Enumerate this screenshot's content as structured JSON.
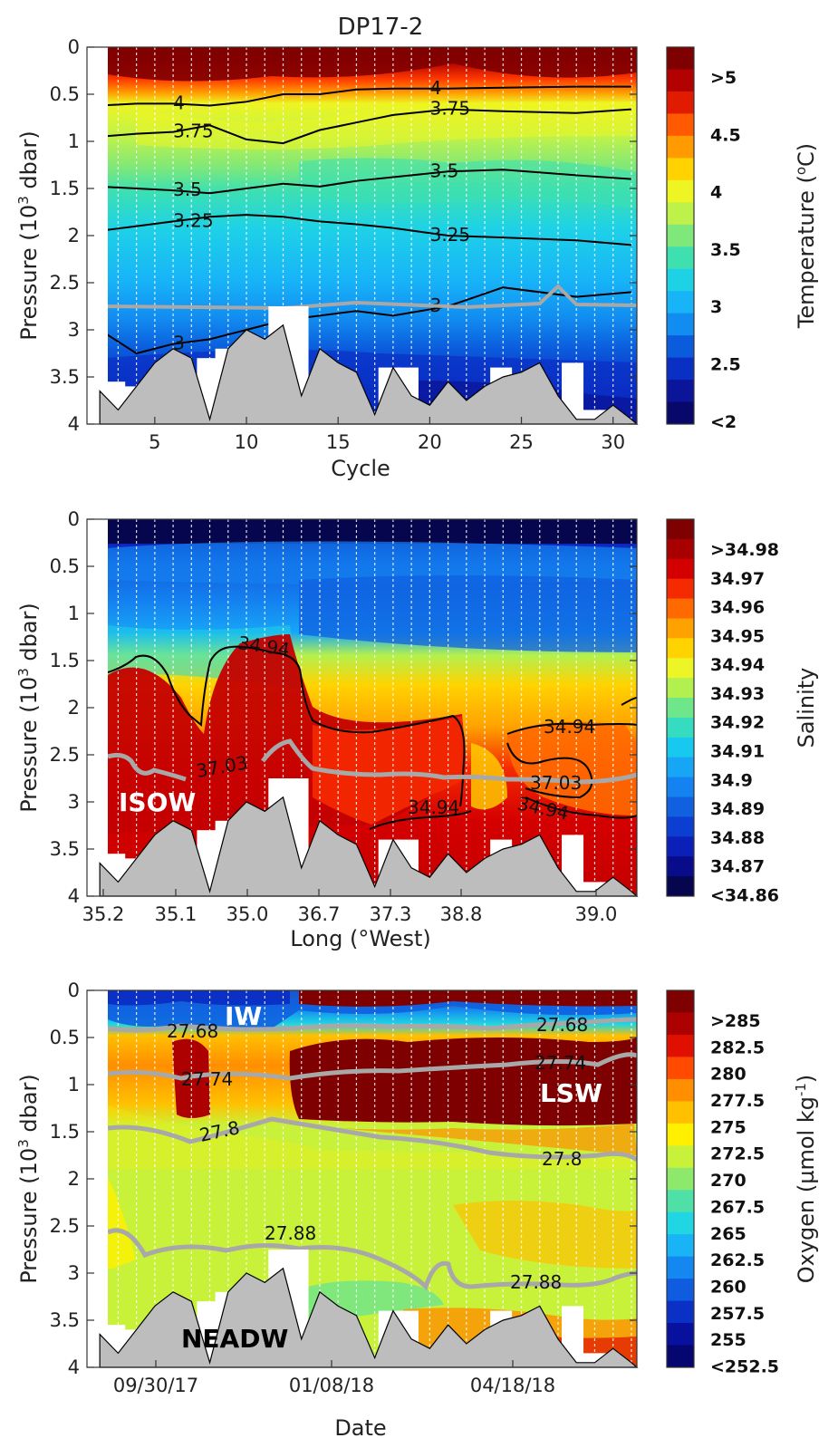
{
  "figure_title": "DP17-2",
  "chart_data": [
    {
      "type": "heatmap",
      "panel": "temperature",
      "xlabel": "Cycle",
      "ylabel": "Pressure (10^3 dbar)",
      "xlim": [
        1.3,
        31.3
      ],
      "ylim": [
        4,
        0
      ],
      "x_ticks": [
        "5",
        "10",
        "15",
        "20",
        "25",
        "30"
      ],
      "x_tick_values": [
        5,
        10,
        15,
        20,
        25,
        30
      ],
      "y_ticks": [
        "0",
        "0.5",
        "1",
        "1.5",
        "2",
        "2.5",
        "3",
        "3.5",
        "4"
      ],
      "y_tick_values": [
        0,
        0.5,
        1,
        1.5,
        2,
        2.5,
        3,
        3.5,
        4
      ],
      "colorbar_label": "Temperature (°C)",
      "colorbar_ticks": [
        ">5",
        "4.5",
        "4",
        "3.5",
        "3",
        "2.5",
        "<2"
      ],
      "colorbar_colors": [
        "#7f0000",
        "#b30000",
        "#e11b00",
        "#ff5a00",
        "#ff9a00",
        "#ffd200",
        "#eef522",
        "#bef24a",
        "#7ee87a",
        "#3ee0b0",
        "#1ed2e6",
        "#17b4f8",
        "#118cf0",
        "#0b5cdd",
        "#0a2fc4",
        "#0a159a",
        "#08086b"
      ],
      "contours": [
        {
          "label": "4",
          "y": [
            0.62,
            0.6,
            0.6,
            0.62,
            0.58,
            0.5,
            0.5,
            0.45,
            0.44,
            0.44,
            0.43,
            0.42,
            0.42
          ],
          "x": [
            2,
            4,
            6,
            8,
            10,
            12,
            14,
            16,
            18,
            21,
            24,
            28,
            31
          ]
        },
        {
          "label": "3.75",
          "y": [
            0.95,
            0.92,
            0.9,
            0.83,
            0.98,
            1.02,
            0.88,
            0.8,
            0.72,
            0.66,
            0.68,
            0.7,
            0.66
          ],
          "x": [
            2,
            4,
            6,
            8,
            10,
            12,
            14,
            16,
            18,
            21,
            24,
            28,
            31
          ]
        },
        {
          "label": "3.5",
          "y": [
            1.48,
            1.5,
            1.52,
            1.55,
            1.5,
            1.45,
            1.48,
            1.42,
            1.38,
            1.32,
            1.3,
            1.36,
            1.4
          ],
          "x": [
            2,
            4,
            6,
            8,
            10,
            12,
            14,
            16,
            18,
            21,
            24,
            28,
            31
          ]
        },
        {
          "label": "3.25",
          "y": [
            1.95,
            1.9,
            1.85,
            1.8,
            1.78,
            1.8,
            1.85,
            1.88,
            1.92,
            2.0,
            2.02,
            2.05,
            2.1
          ],
          "x": [
            2,
            4,
            6,
            8,
            10,
            12,
            14,
            16,
            18,
            21,
            24,
            28,
            31
          ]
        },
        {
          "label": "3",
          "y": [
            3.0,
            3.25,
            3.15,
            3.1,
            3.0,
            2.9,
            2.85,
            2.8,
            2.85,
            2.75,
            2.55,
            2.65,
            2.6
          ],
          "x": [
            2,
            4,
            6,
            8,
            10,
            12,
            14,
            16,
            18,
            21,
            24,
            28,
            31
          ]
        }
      ],
      "mixed_layer_line_y": 2.75,
      "bottom_depth": {
        "x": [
          2,
          3,
          5,
          6,
          7,
          8,
          9,
          10,
          11,
          12,
          13,
          14,
          15,
          16,
          17,
          18,
          19,
          20,
          21,
          22,
          23,
          24,
          25,
          26,
          27,
          28,
          29,
          30,
          31
        ],
        "y": [
          3.65,
          3.85,
          3.35,
          3.2,
          3.3,
          3.95,
          3.2,
          3.0,
          3.1,
          2.95,
          3.7,
          3.2,
          3.35,
          3.45,
          3.9,
          3.4,
          3.7,
          3.8,
          3.55,
          3.75,
          3.6,
          3.5,
          3.45,
          3.35,
          3.7,
          3.95,
          3.95,
          3.8,
          3.95
        ]
      }
    },
    {
      "type": "heatmap",
      "panel": "salinity",
      "xlabel": "Long (°West)",
      "ylabel": "Pressure (10^3 dbar)",
      "ylim": [
        4,
        0
      ],
      "x_ticks": [
        "35.2",
        "35.1",
        "35.0",
        "36.7",
        "37.3",
        "38.8",
        "39.0"
      ],
      "y_ticks": [
        "0",
        "0.5",
        "1",
        "1.5",
        "2",
        "2.5",
        "3",
        "3.5",
        "4"
      ],
      "y_tick_values": [
        0,
        0.5,
        1,
        1.5,
        2,
        2.5,
        3,
        3.5,
        4
      ],
      "colorbar_label": "Salinity",
      "colorbar_ticks": [
        ">34.98",
        "34.97",
        "34.96",
        "34.95",
        "34.94",
        "34.93",
        "34.92",
        "34.91",
        "34.9",
        "34.89",
        "34.88",
        "34.87",
        "<34.86"
      ],
      "colorbar_colors": [
        "#7f0000",
        "#a80000",
        "#d40000",
        "#f52a00",
        "#ff6a00",
        "#ffa200",
        "#ffd300",
        "#eef526",
        "#b2f050",
        "#6ee68a",
        "#36dcc0",
        "#17c8ef",
        "#17a6f6",
        "#1482f0",
        "#1060e0",
        "#0c3ed2",
        "#0a20b8",
        "#080c8a",
        "#06064e"
      ],
      "contours": [
        {
          "label": "34.94",
          "note": "main"
        }
      ],
      "isopycnal_label": "37.03",
      "water_mass_label": "ISOW"
    },
    {
      "type": "heatmap",
      "panel": "oxygen",
      "xlabel": "Date",
      "ylabel": "Pressure (10^3 dbar)",
      "ylim": [
        4,
        0
      ],
      "x_ticks": [
        "09/30/17",
        "01/08/18",
        "04/18/18"
      ],
      "y_ticks": [
        "0",
        "0.5",
        "1",
        "1.5",
        "2",
        "2.5",
        "3",
        "3.5",
        "4"
      ],
      "y_tick_values": [
        0,
        0.5,
        1,
        1.5,
        2,
        2.5,
        3,
        3.5,
        4
      ],
      "colorbar_label": "Oxygen (µmol kg⁻¹)",
      "colorbar_ticks": [
        ">285",
        "282.5",
        "280",
        "277.5",
        "275",
        "272.5",
        "270",
        "267.5",
        "265",
        "262.5",
        "260",
        "257.5",
        "255",
        "<252.5"
      ],
      "colorbar_colors": [
        "#7f0000",
        "#ad0000",
        "#e01000",
        "#ff4a00",
        "#ff8e00",
        "#ffc000",
        "#fff000",
        "#c8f23a",
        "#8ee86c",
        "#4fe0a8",
        "#20d6e2",
        "#18b4f6",
        "#1488f0",
        "#0f5ce0",
        "#0b30c6",
        "#08109e",
        "#060670"
      ],
      "isopycnals": [
        "27.68",
        "27.74",
        "27.8",
        "27.88"
      ],
      "water_mass_labels": [
        "IW",
        "LSW",
        "NEADW"
      ]
    }
  ]
}
